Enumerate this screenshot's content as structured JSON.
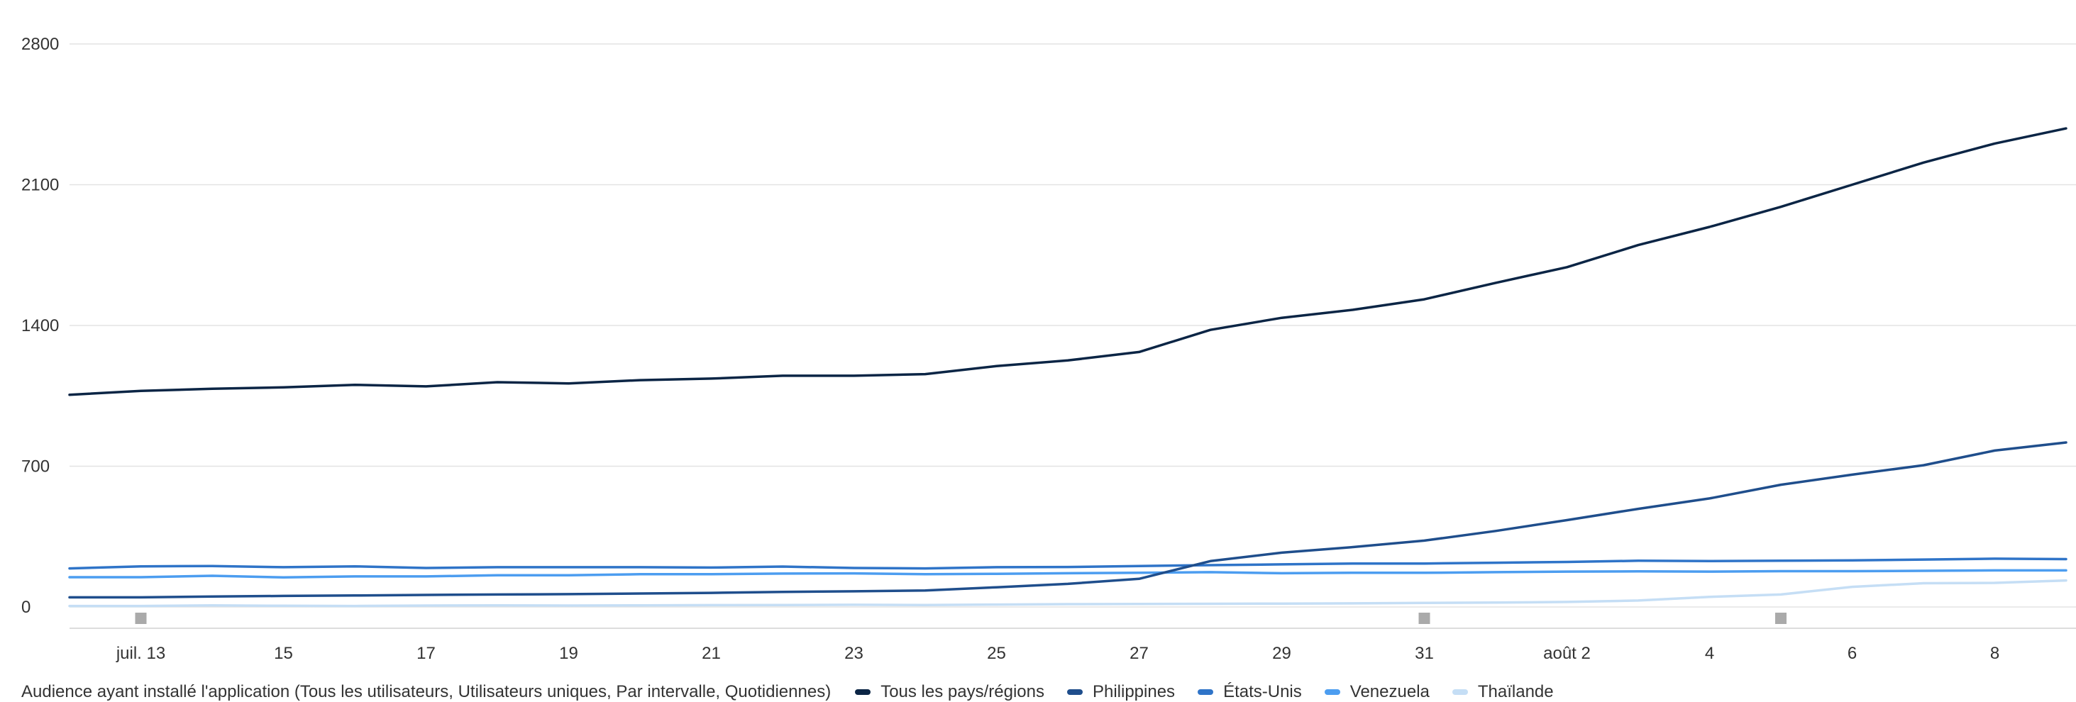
{
  "chart_data": {
    "type": "line",
    "title": "",
    "xlabel": "",
    "ylabel": "",
    "x_tick_labels": [
      "juil. 13",
      "15",
      "17",
      "19",
      "21",
      "23",
      "25",
      "27",
      "29",
      "31",
      "août 2",
      "4",
      "6",
      "8"
    ],
    "y_tick_labels": [
      "0",
      "700",
      "1400",
      "2100",
      "2800"
    ],
    "ylim": [
      0,
      2800
    ],
    "grid": true,
    "legend_position": "bottom-left",
    "legend_title": "Audience ayant installé l'application (Tous les utilisateurs, Utilisateurs uniques, Par intervalle, Quotidiennes)",
    "x": [
      "2020-07-12",
      "2020-07-13",
      "2020-07-14",
      "2020-07-15",
      "2020-07-16",
      "2020-07-17",
      "2020-07-18",
      "2020-07-19",
      "2020-07-20",
      "2020-07-21",
      "2020-07-22",
      "2020-07-23",
      "2020-07-24",
      "2020-07-25",
      "2020-07-26",
      "2020-07-27",
      "2020-07-28",
      "2020-07-29",
      "2020-07-30",
      "2020-07-31",
      "2020-08-01",
      "2020-08-02",
      "2020-08-03",
      "2020-08-04",
      "2020-08-05",
      "2020-08-06",
      "2020-08-07",
      "2020-08-08",
      "2020-08-09"
    ],
    "series": [
      {
        "name": "Tous les pays/régions",
        "color": "#0b2545",
        "values": [
          1055,
          1075,
          1085,
          1092,
          1105,
          1097,
          1118,
          1112,
          1128,
          1136,
          1150,
          1150,
          1158,
          1198,
          1226,
          1268,
          1378,
          1438,
          1478,
          1530,
          1612,
          1690,
          1800,
          1890,
          1990,
          2100,
          2210,
          2305,
          2380
        ]
      },
      {
        "name": "Philippines",
        "color": "#1f4e8c",
        "values": [
          48,
          48,
          52,
          55,
          57,
          60,
          62,
          64,
          67,
          70,
          75,
          78,
          82,
          98,
          115,
          140,
          228,
          270,
          298,
          330,
          378,
          432,
          488,
          540,
          608,
          658,
          705,
          778,
          818
        ]
      },
      {
        "name": "États-Unis",
        "color": "#2f74c8",
        "values": [
          192,
          202,
          204,
          198,
          202,
          194,
          198,
          198,
          198,
          196,
          201,
          194,
          192,
          198,
          199,
          204,
          208,
          212,
          216,
          216,
          220,
          224,
          230,
          228,
          230,
          232,
          236,
          240,
          238
        ]
      },
      {
        "name": "Venezuela",
        "color": "#4c9df0",
        "values": [
          148,
          148,
          155,
          147,
          152,
          152,
          158,
          158,
          163,
          163,
          166,
          167,
          163,
          165,
          168,
          170,
          173,
          168,
          170,
          170,
          173,
          176,
          177,
          176,
          178,
          178,
          180,
          182,
          182
        ]
      },
      {
        "name": "Thaïlande",
        "color": "#c5def5",
        "values": [
          5,
          5,
          8,
          6,
          5,
          7,
          8,
          7,
          8,
          9,
          10,
          11,
          10,
          12,
          14,
          15,
          16,
          17,
          18,
          20,
          22,
          25,
          32,
          50,
          62,
          100,
          118,
          120,
          132
        ]
      }
    ],
    "annotation_markers_x": [
      "2020-07-13",
      "2020-07-31",
      "2020-08-05"
    ]
  }
}
